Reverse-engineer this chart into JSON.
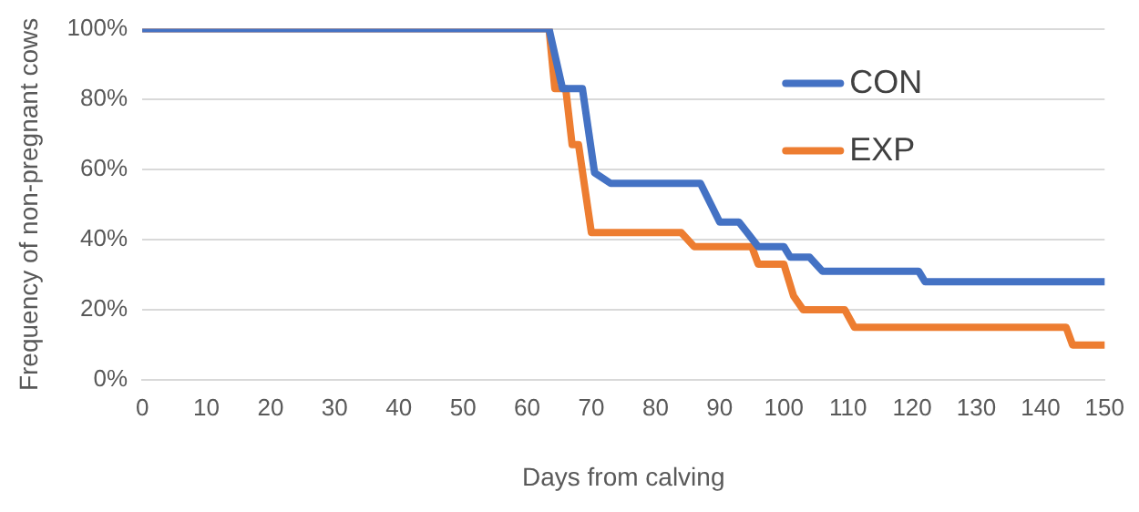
{
  "chart_data": {
    "type": "line",
    "xlabel": "Days from calving",
    "ylabel": "Frequency of non-pregnant cows",
    "xlim": [
      0,
      150
    ],
    "xticks": [
      0,
      10,
      20,
      30,
      40,
      50,
      60,
      70,
      80,
      90,
      100,
      110,
      120,
      130,
      140,
      150
    ],
    "ylim": [
      0,
      100
    ],
    "yticks": [
      {
        "value": 0,
        "label": "0%"
      },
      {
        "value": 20,
        "label": "20%"
      },
      {
        "value": 40,
        "label": "40%"
      },
      {
        "value": 60,
        "label": "60%"
      },
      {
        "value": 80,
        "label": "80%"
      },
      {
        "value": 100,
        "label": "100%"
      }
    ],
    "grid": "y",
    "legend": "right",
    "marker": "none",
    "line_style": "solid",
    "series": [
      {
        "name": "CON",
        "color": "#4472c4",
        "x": [
          0,
          63.4,
          65.5,
          68.6,
          70.5,
          73,
          87,
          90,
          93,
          96,
          100,
          101,
          104,
          106,
          121,
          122,
          150
        ],
        "values": [
          100,
          100,
          83,
          83,
          59,
          56,
          56,
          45,
          45,
          38,
          38,
          35,
          35,
          31,
          31,
          28,
          28
        ]
      },
      {
        "name": "EXP",
        "color": "#ed7d31",
        "x": [
          0,
          63.4,
          64.3,
          66,
          67,
          68,
          70,
          84,
          86,
          95,
          96,
          100,
          101.5,
          103,
          109.5,
          111,
          144,
          145,
          150
        ],
        "values": [
          100,
          100,
          83,
          83,
          67,
          67,
          42,
          42,
          38,
          38,
          33,
          33,
          24,
          20,
          20,
          15,
          15,
          10,
          10
        ]
      }
    ]
  }
}
